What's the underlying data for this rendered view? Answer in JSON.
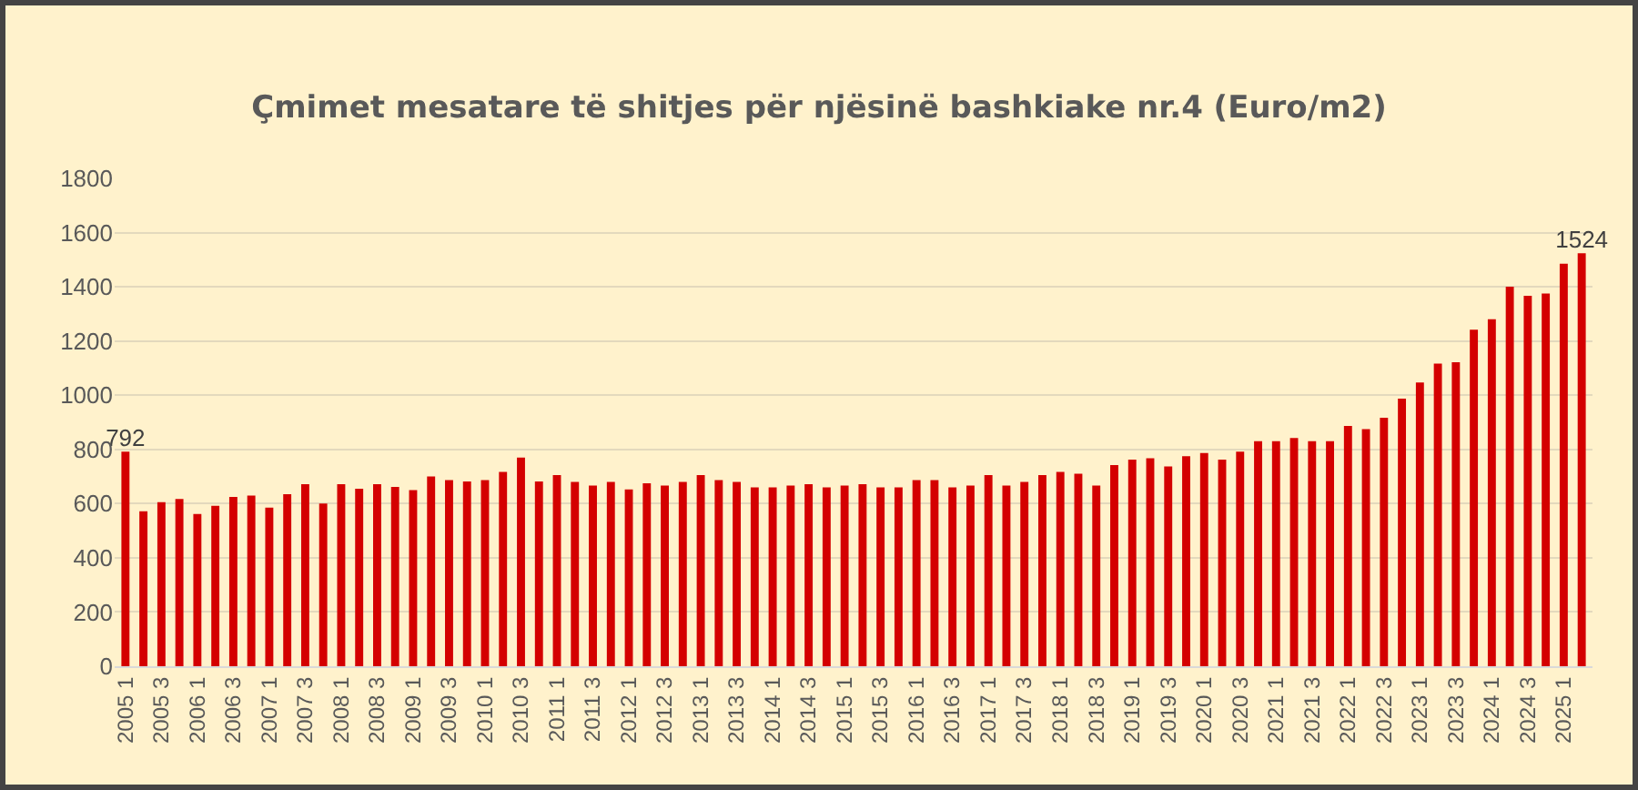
{
  "chart_data": {
    "type": "bar",
    "title": "Çmimet mesatare të shitjes për njësinë bashkiake nr.4 (Euro/m2)",
    "categories": [
      "2005 1",
      null,
      "2005 3",
      null,
      "2006 1",
      null,
      "2006 3",
      null,
      "2007 1",
      null,
      "2007 3",
      null,
      "2008 1",
      null,
      "2008 3",
      null,
      "2009 1",
      null,
      "2009 3",
      null,
      "2010 1",
      null,
      "2010 3",
      null,
      "2011 1",
      null,
      "2011 3",
      null,
      "2012 1",
      null,
      "2012 3",
      null,
      "2013 1",
      null,
      "2013 3",
      null,
      "2014 1",
      null,
      "2014 3",
      null,
      "2015 1",
      null,
      "2015 3",
      null,
      "2016 1",
      null,
      "2016 3",
      null,
      "2017 1",
      null,
      "2017 3",
      null,
      "2018 1",
      null,
      "2018 3",
      null,
      "2019 1",
      null,
      "2019 3",
      null,
      "2020 1",
      null,
      "2020 3",
      null,
      "2021 1",
      null,
      "2021 3",
      null,
      "2022 1",
      null,
      "2022 3",
      null,
      "2023 1",
      null,
      "2023 3",
      null,
      "2024 1",
      null,
      "2024 3",
      null,
      "2025 1",
      null
    ],
    "values": [
      792,
      572,
      605,
      617,
      562,
      592,
      625,
      630,
      585,
      635,
      672,
      600,
      672,
      655,
      672,
      662,
      650,
      700,
      687,
      682,
      687,
      717,
      770,
      682,
      705,
      680,
      667,
      680,
      652,
      675,
      667,
      680,
      705,
      687,
      680,
      660,
      660,
      667,
      672,
      660,
      667,
      672,
      660,
      660,
      687,
      687,
      660,
      667,
      705,
      667,
      680,
      705,
      717,
      710,
      667,
      742,
      762,
      767,
      737,
      775,
      787,
      762,
      792,
      830,
      830,
      842,
      830,
      830,
      887,
      875,
      917,
      987,
      1047,
      1117,
      1122,
      1242,
      1280,
      1400,
      1367,
      1375,
      1485,
      1524
    ],
    "value_labels": [
      "792",
      null,
      null,
      null,
      null,
      null,
      null,
      null,
      null,
      null,
      null,
      null,
      null,
      null,
      null,
      null,
      null,
      null,
      null,
      null,
      null,
      null,
      null,
      null,
      null,
      null,
      null,
      null,
      null,
      null,
      null,
      null,
      null,
      null,
      null,
      null,
      null,
      null,
      null,
      null,
      null,
      null,
      null,
      null,
      null,
      null,
      null,
      null,
      null,
      null,
      null,
      null,
      null,
      null,
      null,
      null,
      null,
      null,
      null,
      null,
      null,
      null,
      null,
      null,
      null,
      null,
      null,
      null,
      null,
      null,
      null,
      null,
      null,
      null,
      null,
      null,
      null,
      null,
      null,
      null,
      null,
      "1524"
    ],
    "color": "#d40000",
    "ylim": [
      0,
      1800
    ],
    "yticks": [
      0,
      200,
      400,
      600,
      800,
      1000,
      1200,
      1400,
      1600,
      1800
    ],
    "grid": "y",
    "legend": false
  }
}
